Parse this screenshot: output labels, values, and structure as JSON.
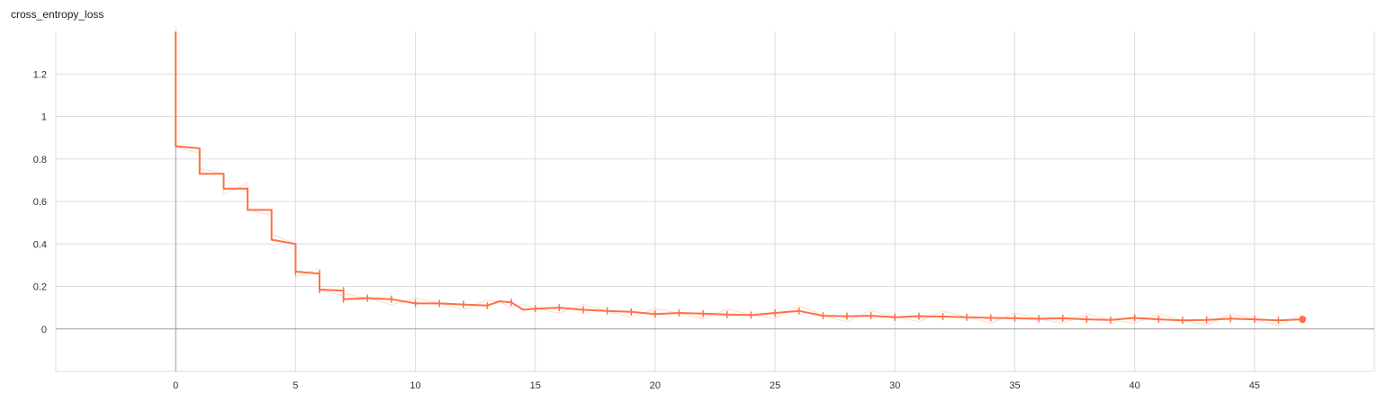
{
  "chart_data": {
    "type": "line",
    "title": "cross_entropy_loss",
    "xlim": [
      -5,
      50
    ],
    "ylim": [
      -0.2,
      1.4
    ],
    "x_ticks": [
      0,
      5,
      10,
      15,
      20,
      25,
      30,
      35,
      40,
      45
    ],
    "y_ticks": [
      0,
      0.2,
      0.4,
      0.6,
      0.8,
      1,
      1.2
    ],
    "y_tick_labels": [
      "0",
      "0.2",
      "0.4",
      "0.6",
      "0.8",
      "1",
      "1.2"
    ],
    "grid": true,
    "colors": {
      "series": "#ff7043",
      "grid": "#dddddd",
      "axis": "#9e9e9e"
    },
    "series": [
      {
        "x": [
          0,
          0,
          1,
          1,
          2,
          2,
          3,
          3,
          4,
          4,
          5,
          5,
          6,
          6,
          7,
          7,
          8,
          9,
          10,
          11,
          12,
          13,
          13.5,
          14,
          14.5,
          15,
          16,
          17,
          18,
          19,
          20,
          21,
          22,
          23,
          24,
          25,
          26,
          27,
          28,
          29,
          30,
          31,
          32,
          33,
          34,
          35,
          36,
          37,
          38,
          39,
          40,
          41,
          42,
          43,
          44,
          45,
          46,
          47
        ],
        "y": [
          1.4,
          0.86,
          0.85,
          0.73,
          0.73,
          0.66,
          0.66,
          0.56,
          0.56,
          0.42,
          0.4,
          0.27,
          0.26,
          0.185,
          0.18,
          0.14,
          0.145,
          0.14,
          0.12,
          0.12,
          0.115,
          0.11,
          0.13,
          0.125,
          0.09,
          0.095,
          0.1,
          0.09,
          0.085,
          0.08,
          0.07,
          0.075,
          0.072,
          0.068,
          0.065,
          0.075,
          0.085,
          0.062,
          0.06,
          0.062,
          0.055,
          0.06,
          0.058,
          0.055,
          0.052,
          0.05,
          0.048,
          0.05,
          0.045,
          0.042,
          0.052,
          0.045,
          0.04,
          0.042,
          0.048,
          0.045,
          0.04,
          0.045
        ]
      }
    ],
    "last_point": [
      47,
      0.045
    ]
  }
}
